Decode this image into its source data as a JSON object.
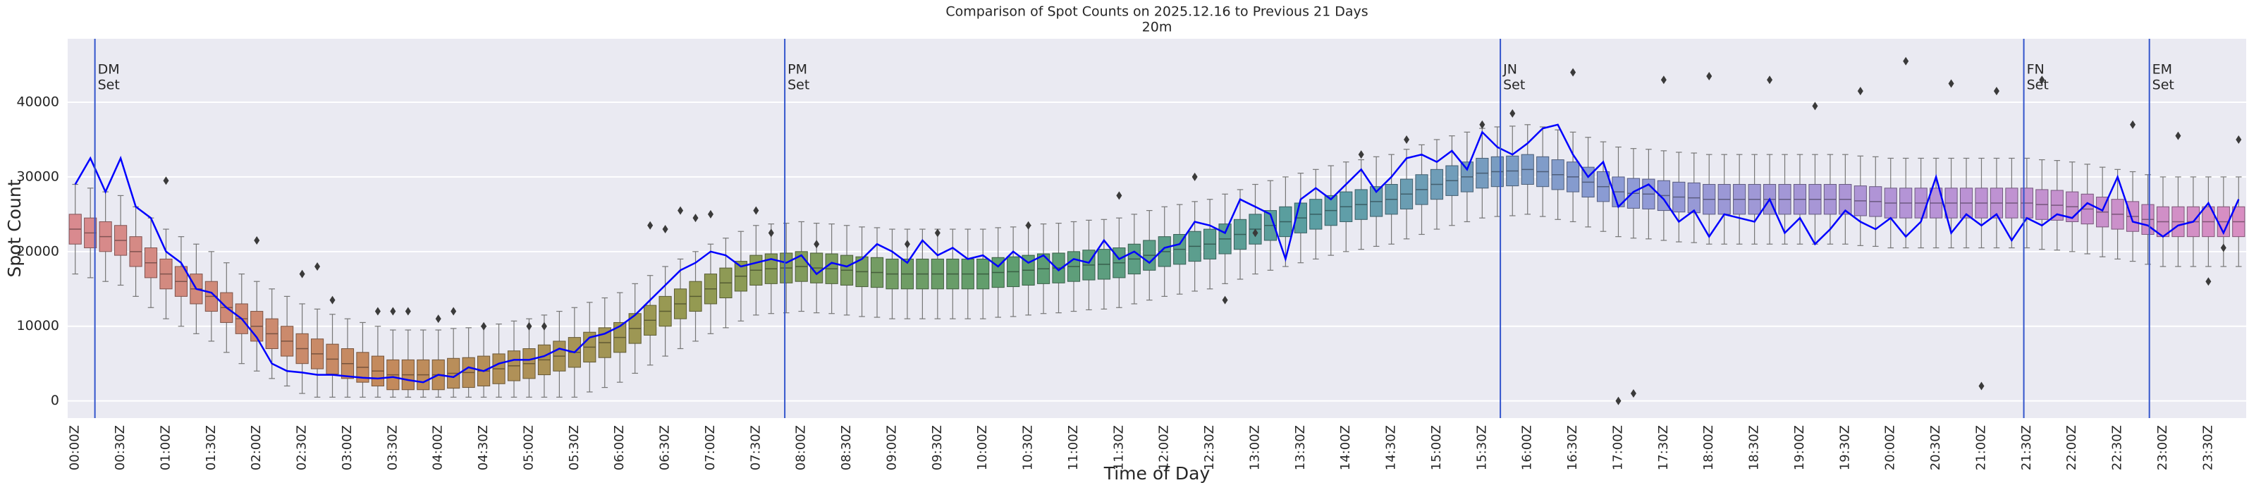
{
  "chart_data": {
    "type": "box",
    "title": "Comparison of Spot Counts on 2025.12.16 to Previous 21 Days",
    "subtitle": "20m",
    "x_label": "Time of Day",
    "y_label": "Spot Count",
    "ylim": [
      -2300,
      48500
    ],
    "yticks": [
      0,
      10000,
      20000,
      30000,
      40000
    ],
    "grid": true,
    "background": "#eaeaf2",
    "palette": [
      "#d98a8f",
      "#c48a5c",
      "#949a52",
      "#5f9e6e",
      "#5a9ea2",
      "#8d9bd6",
      "#b793d6",
      "#d88ec2"
    ],
    "categories": [
      "00:00Z",
      null,
      null,
      "00:30Z",
      null,
      null,
      "01:00Z",
      null,
      null,
      "01:30Z",
      null,
      null,
      "02:00Z",
      null,
      null,
      "02:30Z",
      null,
      null,
      "03:00Z",
      null,
      null,
      "03:30Z",
      null,
      null,
      "04:00Z",
      null,
      null,
      "04:30Z",
      null,
      null,
      "05:00Z",
      null,
      null,
      "05:30Z",
      null,
      null,
      "06:00Z",
      null,
      null,
      "06:30Z",
      null,
      null,
      "07:00Z",
      null,
      null,
      "07:30Z",
      null,
      null,
      "08:00Z",
      null,
      null,
      "08:30Z",
      null,
      null,
      "09:00Z",
      null,
      null,
      "09:30Z",
      null,
      null,
      "10:00Z",
      null,
      null,
      "10:30Z",
      null,
      null,
      "11:00Z",
      null,
      null,
      "11:30Z",
      null,
      null,
      "12:00Z",
      null,
      null,
      "12:30Z",
      null,
      null,
      "13:00Z",
      null,
      null,
      "13:30Z",
      null,
      null,
      "14:00Z",
      null,
      null,
      "14:30Z",
      null,
      null,
      "15:00Z",
      null,
      null,
      "15:30Z",
      null,
      null,
      "16:00Z",
      null,
      null,
      "16:30Z",
      null,
      null,
      "17:00Z",
      null,
      null,
      "17:30Z",
      null,
      null,
      "18:00Z",
      null,
      null,
      "18:30Z",
      null,
      null,
      "19:00Z",
      null,
      null,
      "19:30Z",
      null,
      null,
      "20:00Z",
      null,
      null,
      "20:30Z",
      null,
      null,
      "21:00Z",
      null,
      null,
      "21:30Z",
      null,
      null,
      "22:00Z",
      null,
      null,
      "22:30Z",
      null,
      null,
      "23:00Z",
      null,
      null,
      "23:30Z",
      null,
      null
    ],
    "boxes": {
      "whislo": [
        17000,
        16500,
        16000,
        15500,
        14000,
        12500,
        11000,
        10000,
        9000,
        8000,
        6500,
        5000,
        4000,
        3000,
        2000,
        1000,
        500,
        500,
        500,
        500,
        500,
        500,
        500,
        500,
        500,
        500,
        500,
        500,
        500,
        500,
        500,
        500,
        500,
        500,
        1200,
        1800,
        2500,
        3700,
        4800,
        6000,
        7000,
        8000,
        9000,
        9800,
        10700,
        11500,
        11700,
        11800,
        12000,
        11800,
        11700,
        11500,
        11300,
        11200,
        11000,
        11000,
        11000,
        11000,
        11000,
        11000,
        11000,
        11200,
        11300,
        11500,
        11700,
        11800,
        12000,
        12200,
        12300,
        12500,
        13000,
        13500,
        14000,
        14300,
        14700,
        15000,
        15700,
        16300,
        17000,
        17500,
        18000,
        18500,
        19000,
        19500,
        20000,
        20300,
        20700,
        21000,
        21700,
        22300,
        23000,
        23500,
        24000,
        24500,
        24700,
        24800,
        25000,
        24700,
        24300,
        24000,
        23300,
        22700,
        22000,
        21800,
        21700,
        21500,
        21300,
        21200,
        21000,
        21000,
        21000,
        21000,
        21000,
        21000,
        21000,
        21000,
        21000,
        21000,
        20800,
        20700,
        20500,
        20500,
        20500,
        20500,
        20500,
        20500,
        20500,
        20500,
        20500,
        20500,
        20300,
        20200,
        20000,
        19700,
        19300,
        19000,
        18700,
        18300,
        18000,
        18000,
        18000,
        18000,
        18000,
        18000
      ],
      "q1": [
        21000,
        20500,
        20000,
        19500,
        18000,
        16500,
        15000,
        14000,
        13000,
        12000,
        10500,
        9000,
        8000,
        7000,
        6000,
        5000,
        4300,
        3600,
        3000,
        2500,
        2000,
        1500,
        1500,
        1500,
        1500,
        1700,
        1800,
        2000,
        2300,
        2700,
        3000,
        3500,
        4000,
        4500,
        5200,
        5800,
        6500,
        7700,
        8800,
        10000,
        11000,
        12000,
        13000,
        13800,
        14700,
        15500,
        15700,
        15800,
        16000,
        15800,
        15700,
        15500,
        15300,
        15200,
        15000,
        15000,
        15000,
        15000,
        15000,
        15000,
        15000,
        15200,
        15300,
        15500,
        15700,
        15800,
        16000,
        16200,
        16300,
        16500,
        17000,
        17500,
        18000,
        18300,
        18700,
        19000,
        19700,
        20300,
        21000,
        21500,
        22000,
        22500,
        23000,
        23500,
        24000,
        24300,
        24700,
        25000,
        25700,
        26300,
        27000,
        27500,
        28000,
        28500,
        28700,
        28800,
        29000,
        28700,
        28300,
        28000,
        27300,
        26700,
        26000,
        25800,
        25700,
        25500,
        25300,
        25200,
        25000,
        25000,
        25000,
        25000,
        25000,
        25000,
        25000,
        25000,
        25000,
        25000,
        24800,
        24700,
        24500,
        24500,
        24500,
        24500,
        24500,
        24500,
        24500,
        24500,
        24500,
        24500,
        24300,
        24200,
        24000,
        23700,
        23300,
        23000,
        22700,
        22300,
        22000,
        22000,
        22000,
        22000,
        22000,
        22000
      ],
      "median": [
        23000,
        22500,
        22000,
        21500,
        20000,
        18500,
        17000,
        16000,
        15000,
        14000,
        12500,
        11000,
        10000,
        9000,
        8000,
        7000,
        6300,
        5600,
        5000,
        4500,
        4000,
        3500,
        3500,
        3500,
        3500,
        3700,
        3800,
        4000,
        4300,
        4700,
        5000,
        5500,
        6000,
        6500,
        7200,
        7800,
        8500,
        9700,
        10800,
        12000,
        13000,
        14000,
        15000,
        15800,
        16700,
        17500,
        17700,
        17800,
        18000,
        17800,
        17700,
        17500,
        17300,
        17200,
        17000,
        17000,
        17000,
        17000,
        17000,
        17000,
        17000,
        17200,
        17300,
        17500,
        17700,
        17800,
        18000,
        18200,
        18300,
        18500,
        19000,
        19500,
        20000,
        20300,
        20700,
        21000,
        21700,
        22300,
        23000,
        23500,
        24000,
        24500,
        25000,
        25500,
        26000,
        26300,
        26700,
        27000,
        27700,
        28300,
        29000,
        29500,
        30000,
        30500,
        30700,
        30800,
        31000,
        30700,
        30300,
        30000,
        29300,
        28700,
        28000,
        27800,
        27700,
        27500,
        27300,
        27200,
        27000,
        27000,
        27000,
        27000,
        27000,
        27000,
        27000,
        27000,
        27000,
        27000,
        26800,
        26700,
        26500,
        26500,
        26500,
        26500,
        26500,
        26500,
        26500,
        26500,
        26500,
        26500,
        26300,
        26200,
        26000,
        25700,
        25300,
        25000,
        24700,
        24300,
        24000,
        24000,
        24000,
        24000,
        24000,
        24000
      ],
      "q3": [
        25000,
        24500,
        24000,
        23500,
        22000,
        20500,
        19000,
        18000,
        17000,
        16000,
        14500,
        13000,
        12000,
        11000,
        10000,
        9000,
        8300,
        7600,
        7000,
        6500,
        6000,
        5500,
        5500,
        5500,
        5500,
        5700,
        5800,
        6000,
        6300,
        6700,
        7000,
        7500,
        8000,
        8500,
        9200,
        9800,
        10500,
        11700,
        12800,
        14000,
        15000,
        16000,
        17000,
        17800,
        18700,
        19500,
        19700,
        19800,
        20000,
        19800,
        19700,
        19500,
        19300,
        19200,
        19000,
        19000,
        19000,
        19000,
        19000,
        19000,
        19000,
        19200,
        19300,
        19500,
        19700,
        19800,
        20000,
        20200,
        20300,
        20500,
        21000,
        21500,
        22000,
        22300,
        22700,
        23000,
        23700,
        24300,
        25000,
        25500,
        26000,
        26500,
        27000,
        27500,
        28000,
        28300,
        28700,
        29000,
        29700,
        30300,
        31000,
        31500,
        32000,
        32500,
        32700,
        32800,
        33000,
        32700,
        32300,
        32000,
        31300,
        30700,
        30000,
        29800,
        29700,
        29500,
        29300,
        29200,
        29000,
        29000,
        29000,
        29000,
        29000,
        29000,
        29000,
        29000,
        29000,
        29000,
        28800,
        28700,
        28500,
        28500,
        28500,
        28500,
        28500,
        28500,
        28500,
        28500,
        28500,
        28500,
        28300,
        28200,
        28000,
        27700,
        27300,
        27000,
        26700,
        26300,
        26000,
        26000,
        26000,
        26000,
        26000,
        26000
      ],
      "whishi": [
        29000,
        28500,
        28000,
        27500,
        26000,
        24500,
        23000,
        22000,
        21000,
        20000,
        18500,
        17000,
        16000,
        15000,
        14000,
        13000,
        12300,
        11600,
        11000,
        10500,
        10000,
        9500,
        9500,
        9500,
        9500,
        9700,
        9800,
        10000,
        10300,
        10700,
        11000,
        11500,
        12000,
        12500,
        13200,
        13800,
        14500,
        15700,
        16800,
        18000,
        19000,
        20000,
        21000,
        21800,
        22700,
        23500,
        23700,
        23800,
        24000,
        23800,
        23700,
        23500,
        23300,
        23200,
        23000,
        23000,
        23000,
        23000,
        23000,
        23000,
        23000,
        23200,
        23300,
        23500,
        23700,
        23800,
        24000,
        24200,
        24300,
        24500,
        25000,
        25500,
        26000,
        26300,
        26700,
        27000,
        27700,
        28300,
        29000,
        29500,
        30000,
        30500,
        31000,
        31500,
        32000,
        32300,
        32700,
        33000,
        33700,
        34300,
        35000,
        35500,
        36000,
        36500,
        36700,
        36800,
        37000,
        36700,
        36300,
        36000,
        35300,
        34700,
        34000,
        33800,
        33700,
        33500,
        33300,
        33200,
        33000,
        33000,
        33000,
        33000,
        33000,
        33000,
        33000,
        33000,
        33000,
        33000,
        32800,
        32700,
        32500,
        32500,
        32500,
        32500,
        32500,
        32500,
        32500,
        32500,
        32500,
        32500,
        32300,
        32200,
        32000,
        31700,
        31300,
        31000,
        30700,
        30300,
        30000,
        30000,
        30000,
        30000,
        30000,
        30000
      ]
    },
    "outliers": {
      "x": [
        6,
        12,
        15,
        16,
        17,
        20,
        21,
        22,
        24,
        25,
        27,
        30,
        31,
        38,
        39,
        40,
        41,
        42,
        45,
        46,
        49,
        55,
        57,
        63,
        69,
        74,
        76,
        78,
        85,
        88,
        93,
        95,
        99,
        102,
        103,
        105,
        108,
        112,
        115,
        118,
        121,
        124,
        126,
        127,
        130,
        136,
        139,
        141,
        142,
        143
      ],
      "y": [
        29500,
        21500,
        17000,
        18000,
        13500,
        12000,
        12000,
        12000,
        11000,
        12000,
        10000,
        10000,
        10000,
        23500,
        23000,
        25500,
        24500,
        25000,
        25500,
        22500,
        21000,
        21000,
        22500,
        23500,
        27500,
        30000,
        13500,
        22500,
        33000,
        35000,
        37000,
        38500,
        44000,
        0,
        1000,
        43000,
        43500,
        43000,
        39500,
        41500,
        45500,
        42500,
        2000,
        41500,
        43000,
        37000,
        35500,
        16000,
        20500,
        35000
      ],
      "color": "#3a3a3a"
    },
    "line": {
      "color": "#0000ff",
      "values": [
        29000,
        32500,
        28000,
        32500,
        26000,
        24500,
        20000,
        18500,
        15000,
        14500,
        12500,
        11000,
        8500,
        5000,
        4000,
        3800,
        3500,
        3500,
        3300,
        3100,
        3000,
        3200,
        2800,
        2500,
        3500,
        3200,
        4500,
        4000,
        5000,
        5500,
        5500,
        6000,
        7000,
        6500,
        8500,
        9000,
        10000,
        11500,
        13500,
        15500,
        17500,
        18500,
        20000,
        19500,
        18000,
        18500,
        19000,
        18500,
        19500,
        17000,
        18500,
        18000,
        19000,
        21000,
        20000,
        18500,
        21500,
        19500,
        20500,
        19000,
        19500,
        18000,
        20000,
        18500,
        19500,
        17500,
        19000,
        18500,
        21500,
        19000,
        20000,
        18500,
        20500,
        21000,
        24000,
        23500,
        22500,
        27000,
        26000,
        25000,
        19000,
        27000,
        28500,
        27000,
        29000,
        31000,
        28000,
        30000,
        32500,
        33000,
        32000,
        33500,
        31000,
        36000,
        34000,
        33000,
        34500,
        36500,
        37000,
        33000,
        30000,
        32000,
        26000,
        28000,
        29000,
        27000,
        24000,
        25500,
        22000,
        25000,
        24500,
        24000,
        27000,
        22500,
        24500,
        21000,
        23000,
        25500,
        24000,
        23000,
        24500,
        22000,
        24000,
        30000,
        22500,
        25000,
        23500,
        25000,
        21500,
        24500,
        23500,
        25000,
        24500,
        26500,
        25500,
        30000,
        24000,
        23500,
        22000,
        23500,
        24000,
        26500,
        22500,
        27000
      ]
    },
    "annotations": [
      {
        "x": 1.3,
        "lines": [
          "DM",
          "Set"
        ]
      },
      {
        "x": 46.9,
        "lines": [
          "PM",
          "Set"
        ]
      },
      {
        "x": 94.2,
        "lines": [
          "JN",
          "Set"
        ]
      },
      {
        "x": 128.8,
        "lines": [
          "FN",
          "Set"
        ]
      },
      {
        "x": 137.1,
        "lines": [
          "EM",
          "Set"
        ]
      }
    ],
    "annotation_color": "#3355cc"
  }
}
